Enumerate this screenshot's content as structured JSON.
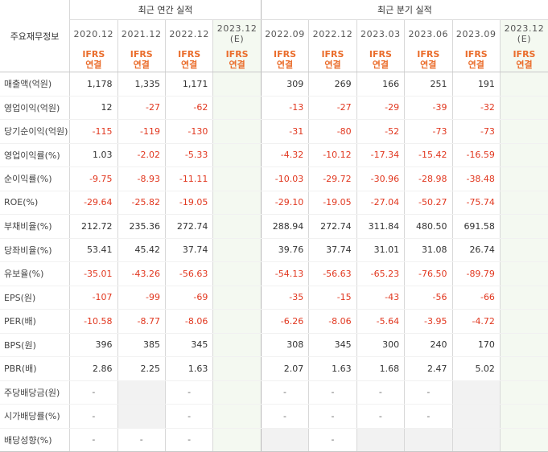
{
  "header": {
    "label_col": "주요재무정보",
    "annual_title": "최근 연간 실적",
    "quarter_title": "최근 분기 실적",
    "standard_top": "IFRS",
    "standard_bottom": "연결",
    "annual_periods": [
      "2020.12",
      "2021.12",
      "2022.12"
    ],
    "annual_estimate": {
      "period": "2023.12",
      "note": "(E)"
    },
    "quarter_periods": [
      "2022.09",
      "2022.12",
      "2023.03",
      "2023.06",
      "2023.09"
    ],
    "quarter_estimate": {
      "period": "2023.12",
      "note": "(E)"
    }
  },
  "rows": [
    {
      "label": "매출액(억원)",
      "annual": [
        "1,178",
        "1,335",
        "1,171"
      ],
      "quarter": [
        "309",
        "269",
        "166",
        "251",
        "191"
      ]
    },
    {
      "label": "영업이익(억원)",
      "annual": [
        "12",
        "-27",
        "-62"
      ],
      "quarter": [
        "-13",
        "-27",
        "-29",
        "-39",
        "-32"
      ]
    },
    {
      "label": "당기순이익(억원)",
      "annual": [
        "-115",
        "-119",
        "-130"
      ],
      "quarter": [
        "-31",
        "-80",
        "-52",
        "-73",
        "-73"
      ]
    },
    {
      "label": "영업이익률(%)",
      "annual": [
        "1.03",
        "-2.02",
        "-5.33"
      ],
      "quarter": [
        "-4.32",
        "-10.12",
        "-17.34",
        "-15.42",
        "-16.59"
      ]
    },
    {
      "label": "순이익률(%)",
      "annual": [
        "-9.75",
        "-8.93",
        "-11.11"
      ],
      "quarter": [
        "-10.03",
        "-29.72",
        "-30.96",
        "-28.98",
        "-38.48"
      ]
    },
    {
      "label": "ROE(%)",
      "annual": [
        "-29.64",
        "-25.82",
        "-19.05"
      ],
      "quarter": [
        "-29.10",
        "-19.05",
        "-27.04",
        "-50.27",
        "-75.74"
      ]
    },
    {
      "label": "부채비율(%)",
      "annual": [
        "212.72",
        "235.36",
        "272.74"
      ],
      "quarter": [
        "288.94",
        "272.74",
        "311.84",
        "480.50",
        "691.58"
      ]
    },
    {
      "label": "당좌비율(%)",
      "annual": [
        "53.41",
        "45.42",
        "37.74"
      ],
      "quarter": [
        "39.76",
        "37.74",
        "31.01",
        "31.08",
        "26.74"
      ]
    },
    {
      "label": "유보율(%)",
      "annual": [
        "-35.01",
        "-43.26",
        "-56.63"
      ],
      "quarter": [
        "-54.13",
        "-56.63",
        "-65.23",
        "-76.50",
        "-89.79"
      ]
    },
    {
      "label": "EPS(원)",
      "annual": [
        "-107",
        "-99",
        "-69"
      ],
      "quarter": [
        "-35",
        "-15",
        "-43",
        "-56",
        "-66"
      ]
    },
    {
      "label": "PER(배)",
      "annual": [
        "-10.58",
        "-8.77",
        "-8.06"
      ],
      "quarter": [
        "-6.26",
        "-8.06",
        "-5.64",
        "-3.95",
        "-4.72"
      ]
    },
    {
      "label": "BPS(원)",
      "annual": [
        "396",
        "385",
        "345"
      ],
      "quarter": [
        "308",
        "345",
        "300",
        "240",
        "170"
      ]
    },
    {
      "label": "PBR(배)",
      "annual": [
        "2.86",
        "2.25",
        "1.63"
      ],
      "quarter": [
        "2.07",
        "1.63",
        "1.68",
        "2.47",
        "5.02"
      ]
    },
    {
      "label": "주당배당금(원)",
      "annual": [
        "-",
        "",
        "-"
      ],
      "quarter": [
        "-",
        "-",
        "-",
        "-",
        ""
      ]
    },
    {
      "label": "시가배당률(%)",
      "annual": [
        "-",
        "",
        "-"
      ],
      "quarter": [
        "-",
        "-",
        "-",
        "-",
        ""
      ]
    },
    {
      "label": "배당성향(%)",
      "annual": [
        "-",
        "-",
        "-"
      ],
      "quarter": [
        "",
        "-",
        "",
        "",
        ""
      ]
    }
  ]
}
